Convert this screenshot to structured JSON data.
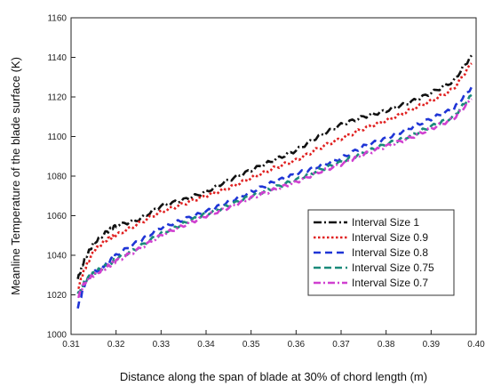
{
  "chart_data": {
    "type": "line",
    "title": "",
    "xlabel": "Distance along the span of blade at 30% of chord length (m)",
    "ylabel": "Meanline Temperature of the blade surface (K)",
    "xlim": [
      0.31,
      0.4
    ],
    "ylim": [
      1000,
      1160
    ],
    "xticks": [
      "0.31",
      "0.32",
      "0.33",
      "0.34",
      "0.35",
      "0.36",
      "0.37",
      "0.38",
      "0.39",
      "0.40"
    ],
    "yticks": [
      "1000",
      "1020",
      "1040",
      "1060",
      "1080",
      "1100",
      "1120",
      "1140",
      "1160"
    ],
    "grid": false,
    "legend_position": "lower-right",
    "x": [
      0.3115,
      0.313,
      0.315,
      0.318,
      0.32,
      0.325,
      0.33,
      0.335,
      0.34,
      0.345,
      0.35,
      0.355,
      0.36,
      0.365,
      0.37,
      0.375,
      0.38,
      0.385,
      0.39,
      0.395,
      0.399
    ],
    "series": [
      {
        "name": "Interval Size 1",
        "color": "#111111",
        "dash": "9 3 2 3",
        "values": [
          1028,
          1038,
          1046,
          1052,
          1055,
          1058,
          1065,
          1068,
          1072,
          1078,
          1083,
          1088,
          1093,
          1100,
          1106,
          1110,
          1113,
          1117,
          1122,
          1128,
          1141
        ]
      },
      {
        "name": "Interval Size 0.9",
        "color": "#e02020",
        "dash": "2.5 2.5",
        "values": [
          1023,
          1033,
          1042,
          1048,
          1050,
          1056,
          1062,
          1066,
          1070,
          1074,
          1079,
          1084,
          1088,
          1094,
          1099,
          1104,
          1108,
          1113,
          1118,
          1124,
          1137
        ]
      },
      {
        "name": "Interval Size 0.8",
        "color": "#1f35d6",
        "dash": "8 5",
        "values": [
          1014,
          1025,
          1031,
          1036,
          1040,
          1047,
          1054,
          1058,
          1062,
          1067,
          1072,
          1077,
          1081,
          1085,
          1089,
          1095,
          1099,
          1104,
          1109,
          1114,
          1125
        ]
      },
      {
        "name": "Interval Size 0.75",
        "color": "#1a8a7a",
        "dash": "8 4",
        "values": [
          1020,
          1027,
          1031,
          1035,
          1038,
          1044,
          1051,
          1056,
          1061,
          1065,
          1070,
          1074,
          1078,
          1083,
          1087,
          1092,
          1096,
          1100,
          1105,
          1110,
          1121
        ]
      },
      {
        "name": "Interval Size 0.7",
        "color": "#d040d0",
        "dash": "8 3 2 3",
        "values": [
          1019,
          1026,
          1030,
          1034,
          1037,
          1043,
          1050,
          1055,
          1060,
          1064,
          1069,
          1073,
          1077,
          1082,
          1086,
          1091,
          1095,
          1099,
          1104,
          1109,
          1119
        ]
      }
    ]
  }
}
